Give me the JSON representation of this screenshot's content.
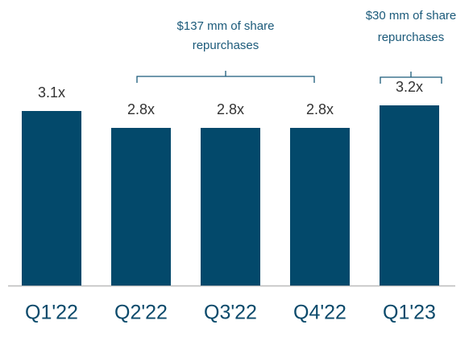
{
  "chart_data": {
    "type": "bar",
    "categories": [
      "Q1'22",
      "Q2'22",
      "Q3'22",
      "Q4'22",
      "Q1'23"
    ],
    "values": [
      3.1,
      2.8,
      2.8,
      2.8,
      3.2
    ],
    "value_labels": [
      "3.1x",
      "2.8x",
      "2.8x",
      "2.8x",
      "3.2x"
    ],
    "color": "#03496b",
    "annotations": [
      {
        "lines": [
          "$137 mm of share",
          "repurchases"
        ]
      },
      {
        "lines": [
          "$30 mm of share",
          "repurchases"
        ]
      }
    ]
  }
}
